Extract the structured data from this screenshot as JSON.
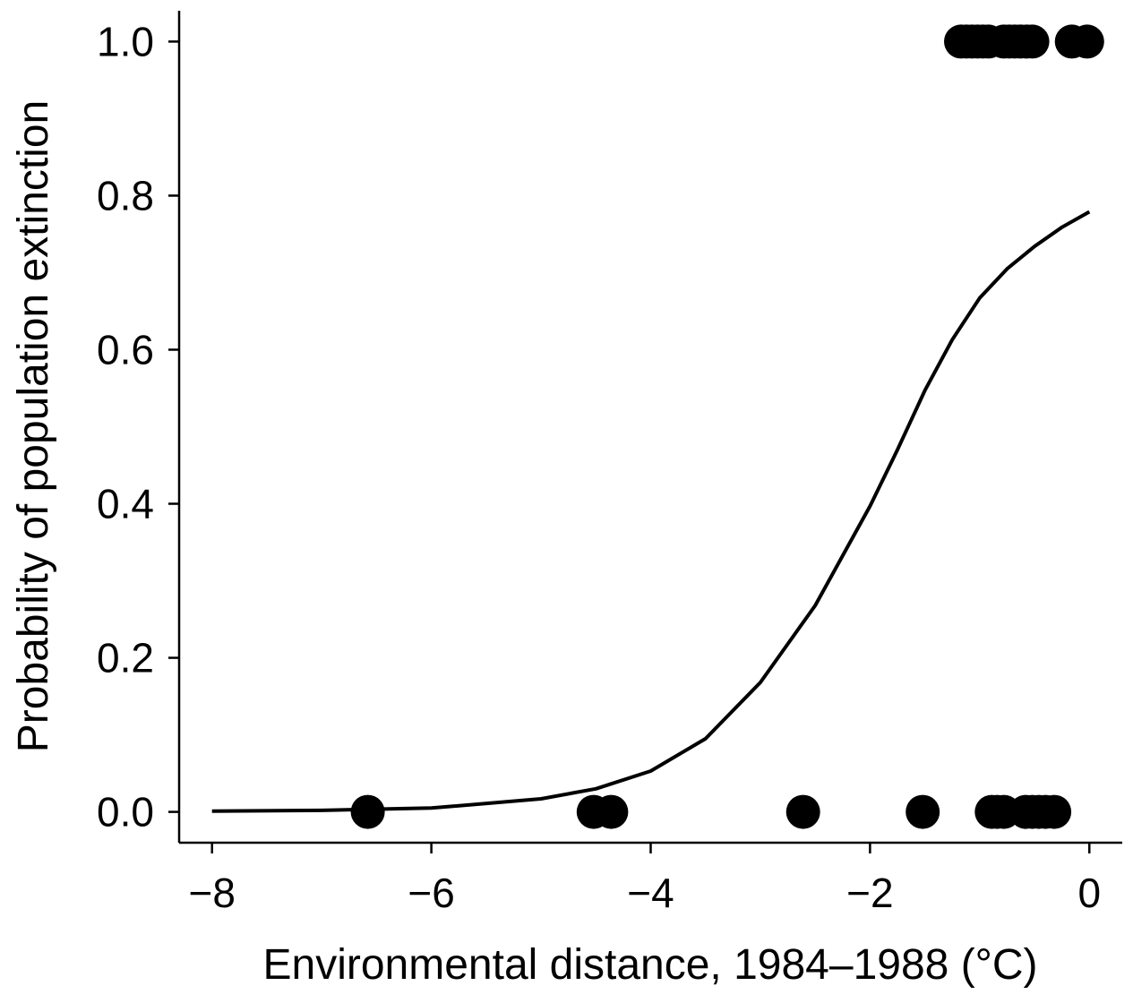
{
  "chart_data": {
    "type": "scatter",
    "title": "",
    "xlabel": "Environmental distance, 1984–1988 (°C)",
    "ylabel": "Probability of population extinction",
    "xlim": [
      -8.3,
      0.3
    ],
    "ylim": [
      -0.04,
      1.04
    ],
    "x_ticks": [
      -8,
      -6,
      -4,
      -2,
      0
    ],
    "x_tick_labels": [
      "−8",
      "−6",
      "−4",
      "−2",
      "0"
    ],
    "y_ticks": [
      0.0,
      0.2,
      0.4,
      0.6,
      0.8,
      1.0
    ],
    "y_tick_labels": [
      "0.0",
      "0.2",
      "0.4",
      "0.6",
      "0.8",
      "1.0"
    ],
    "grid": false,
    "legend": "none",
    "series": [
      {
        "kind": "points",
        "x": [
          -6.58,
          -4.52,
          -4.36,
          -2.61,
          -1.52,
          -0.89,
          -0.84,
          -0.78,
          -0.58,
          -0.52,
          -0.46,
          -0.4,
          -0.32,
          -1.17,
          -1.12,
          -1.07,
          -1.02,
          -0.97,
          -0.92,
          -0.78,
          -0.73,
          -0.68,
          -0.63,
          -0.57,
          -0.52,
          -0.16,
          -0.02
        ],
        "y": [
          0,
          0,
          0,
          0,
          0,
          0,
          0,
          0,
          0,
          0,
          0,
          0,
          0,
          1,
          1,
          1,
          1,
          1,
          1,
          1,
          1,
          1,
          1,
          1,
          1,
          1,
          1
        ]
      },
      {
        "kind": "line",
        "x": [
          -8.0,
          -7.0,
          -6.0,
          -5.0,
          -4.5,
          -4.0,
          -3.5,
          -3.0,
          -2.5,
          -2.0,
          -1.75,
          -1.5,
          -1.25,
          -1.0,
          -0.75,
          -0.5,
          -0.25,
          0.0
        ],
        "y": [
          0.001,
          0.002,
          0.005,
          0.017,
          0.03,
          0.053,
          0.095,
          0.168,
          0.268,
          0.397,
          0.47,
          0.547,
          0.613,
          0.667,
          0.705,
          0.734,
          0.759,
          0.779
        ]
      }
    ]
  }
}
